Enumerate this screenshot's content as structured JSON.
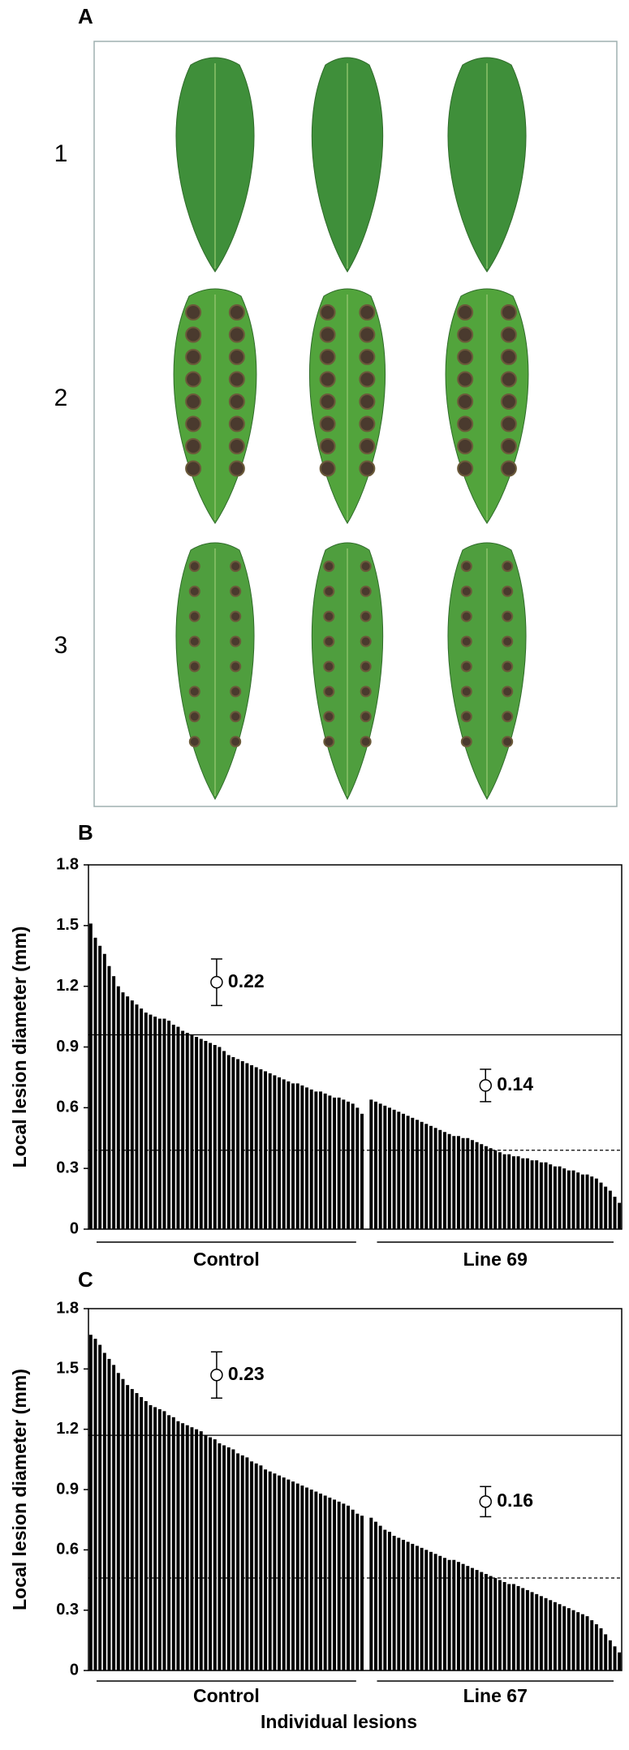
{
  "figure": {
    "panel_labels": [
      "A",
      "B",
      "C"
    ],
    "row_labels": [
      "1",
      "2",
      "3"
    ]
  },
  "chart_data": [
    {
      "type": "bar",
      "ylabel": "Local lesion diameter (mm)",
      "ylim": [
        0,
        1.8
      ],
      "yticks": [
        0,
        0.3,
        0.6,
        0.9,
        1.2,
        1.5,
        1.8
      ],
      "series": [
        {
          "name": "Control",
          "color": "#000000",
          "values": [
            1.51,
            1.44,
            1.4,
            1.36,
            1.3,
            1.25,
            1.2,
            1.17,
            1.15,
            1.13,
            1.11,
            1.09,
            1.07,
            1.06,
            1.05,
            1.04,
            1.04,
            1.03,
            1.01,
            1.0,
            0.98,
            0.97,
            0.96,
            0.95,
            0.94,
            0.93,
            0.92,
            0.91,
            0.9,
            0.88,
            0.86,
            0.85,
            0.84,
            0.83,
            0.82,
            0.81,
            0.8,
            0.79,
            0.78,
            0.77,
            0.76,
            0.75,
            0.74,
            0.73,
            0.72,
            0.72,
            0.71,
            0.7,
            0.69,
            0.68,
            0.68,
            0.67,
            0.66,
            0.65,
            0.65,
            0.64,
            0.63,
            0.62,
            0.6,
            0.57
          ]
        },
        {
          "name": "Line 69",
          "color": "#000000",
          "values": [
            0.64,
            0.63,
            0.62,
            0.61,
            0.6,
            0.59,
            0.58,
            0.57,
            0.56,
            0.55,
            0.54,
            0.53,
            0.52,
            0.51,
            0.5,
            0.49,
            0.48,
            0.47,
            0.46,
            0.46,
            0.45,
            0.45,
            0.44,
            0.43,
            0.42,
            0.41,
            0.4,
            0.39,
            0.38,
            0.37,
            0.37,
            0.36,
            0.36,
            0.35,
            0.35,
            0.34,
            0.34,
            0.33,
            0.33,
            0.32,
            0.31,
            0.31,
            0.3,
            0.29,
            0.29,
            0.28,
            0.27,
            0.27,
            0.26,
            0.25,
            0.23,
            0.21,
            0.19,
            0.16,
            0.13
          ]
        }
      ],
      "reference_lines": [
        {
          "value": 0.96,
          "style": "solid"
        },
        {
          "value": 0.39,
          "style": "dashed"
        }
      ],
      "annotations": [
        {
          "label": 0.22,
          "y": 1.22,
          "error": 0.115
        },
        {
          "label": 0.14,
          "y": 0.71,
          "error": 0.08
        }
      ]
    },
    {
      "type": "bar",
      "ylabel": "Local lesion diameter (mm)",
      "xlabel": "Individual lesions",
      "ylim": [
        0,
        1.8
      ],
      "yticks": [
        0,
        0.3,
        0.6,
        0.9,
        1.2,
        1.5,
        1.8
      ],
      "series": [
        {
          "name": "Control",
          "color": "#000000",
          "values": [
            1.67,
            1.65,
            1.62,
            1.58,
            1.55,
            1.52,
            1.48,
            1.45,
            1.42,
            1.4,
            1.38,
            1.36,
            1.34,
            1.32,
            1.31,
            1.3,
            1.29,
            1.27,
            1.26,
            1.24,
            1.23,
            1.22,
            1.21,
            1.2,
            1.19,
            1.17,
            1.16,
            1.15,
            1.13,
            1.12,
            1.11,
            1.1,
            1.08,
            1.07,
            1.06,
            1.04,
            1.03,
            1.02,
            1.0,
            0.99,
            0.98,
            0.97,
            0.96,
            0.95,
            0.94,
            0.93,
            0.92,
            0.91,
            0.9,
            0.89,
            0.88,
            0.87,
            0.86,
            0.85,
            0.84,
            0.83,
            0.82,
            0.8,
            0.78,
            0.77
          ]
        },
        {
          "name": "Line 67",
          "color": "#000000",
          "values": [
            0.76,
            0.74,
            0.72,
            0.7,
            0.69,
            0.67,
            0.66,
            0.65,
            0.64,
            0.63,
            0.62,
            0.61,
            0.6,
            0.59,
            0.58,
            0.57,
            0.56,
            0.55,
            0.55,
            0.54,
            0.53,
            0.52,
            0.51,
            0.5,
            0.49,
            0.48,
            0.47,
            0.46,
            0.45,
            0.44,
            0.43,
            0.43,
            0.42,
            0.41,
            0.4,
            0.39,
            0.38,
            0.37,
            0.36,
            0.35,
            0.34,
            0.33,
            0.32,
            0.31,
            0.3,
            0.29,
            0.28,
            0.27,
            0.25,
            0.23,
            0.21,
            0.18,
            0.15,
            0.12,
            0.09
          ]
        }
      ],
      "reference_lines": [
        {
          "value": 1.17,
          "style": "solid"
        },
        {
          "value": 0.46,
          "style": "dashed"
        }
      ],
      "annotations": [
        {
          "label": 0.23,
          "y": 1.47,
          "error": 0.115
        },
        {
          "label": 0.16,
          "y": 0.84,
          "error": 0.075
        }
      ]
    }
  ]
}
